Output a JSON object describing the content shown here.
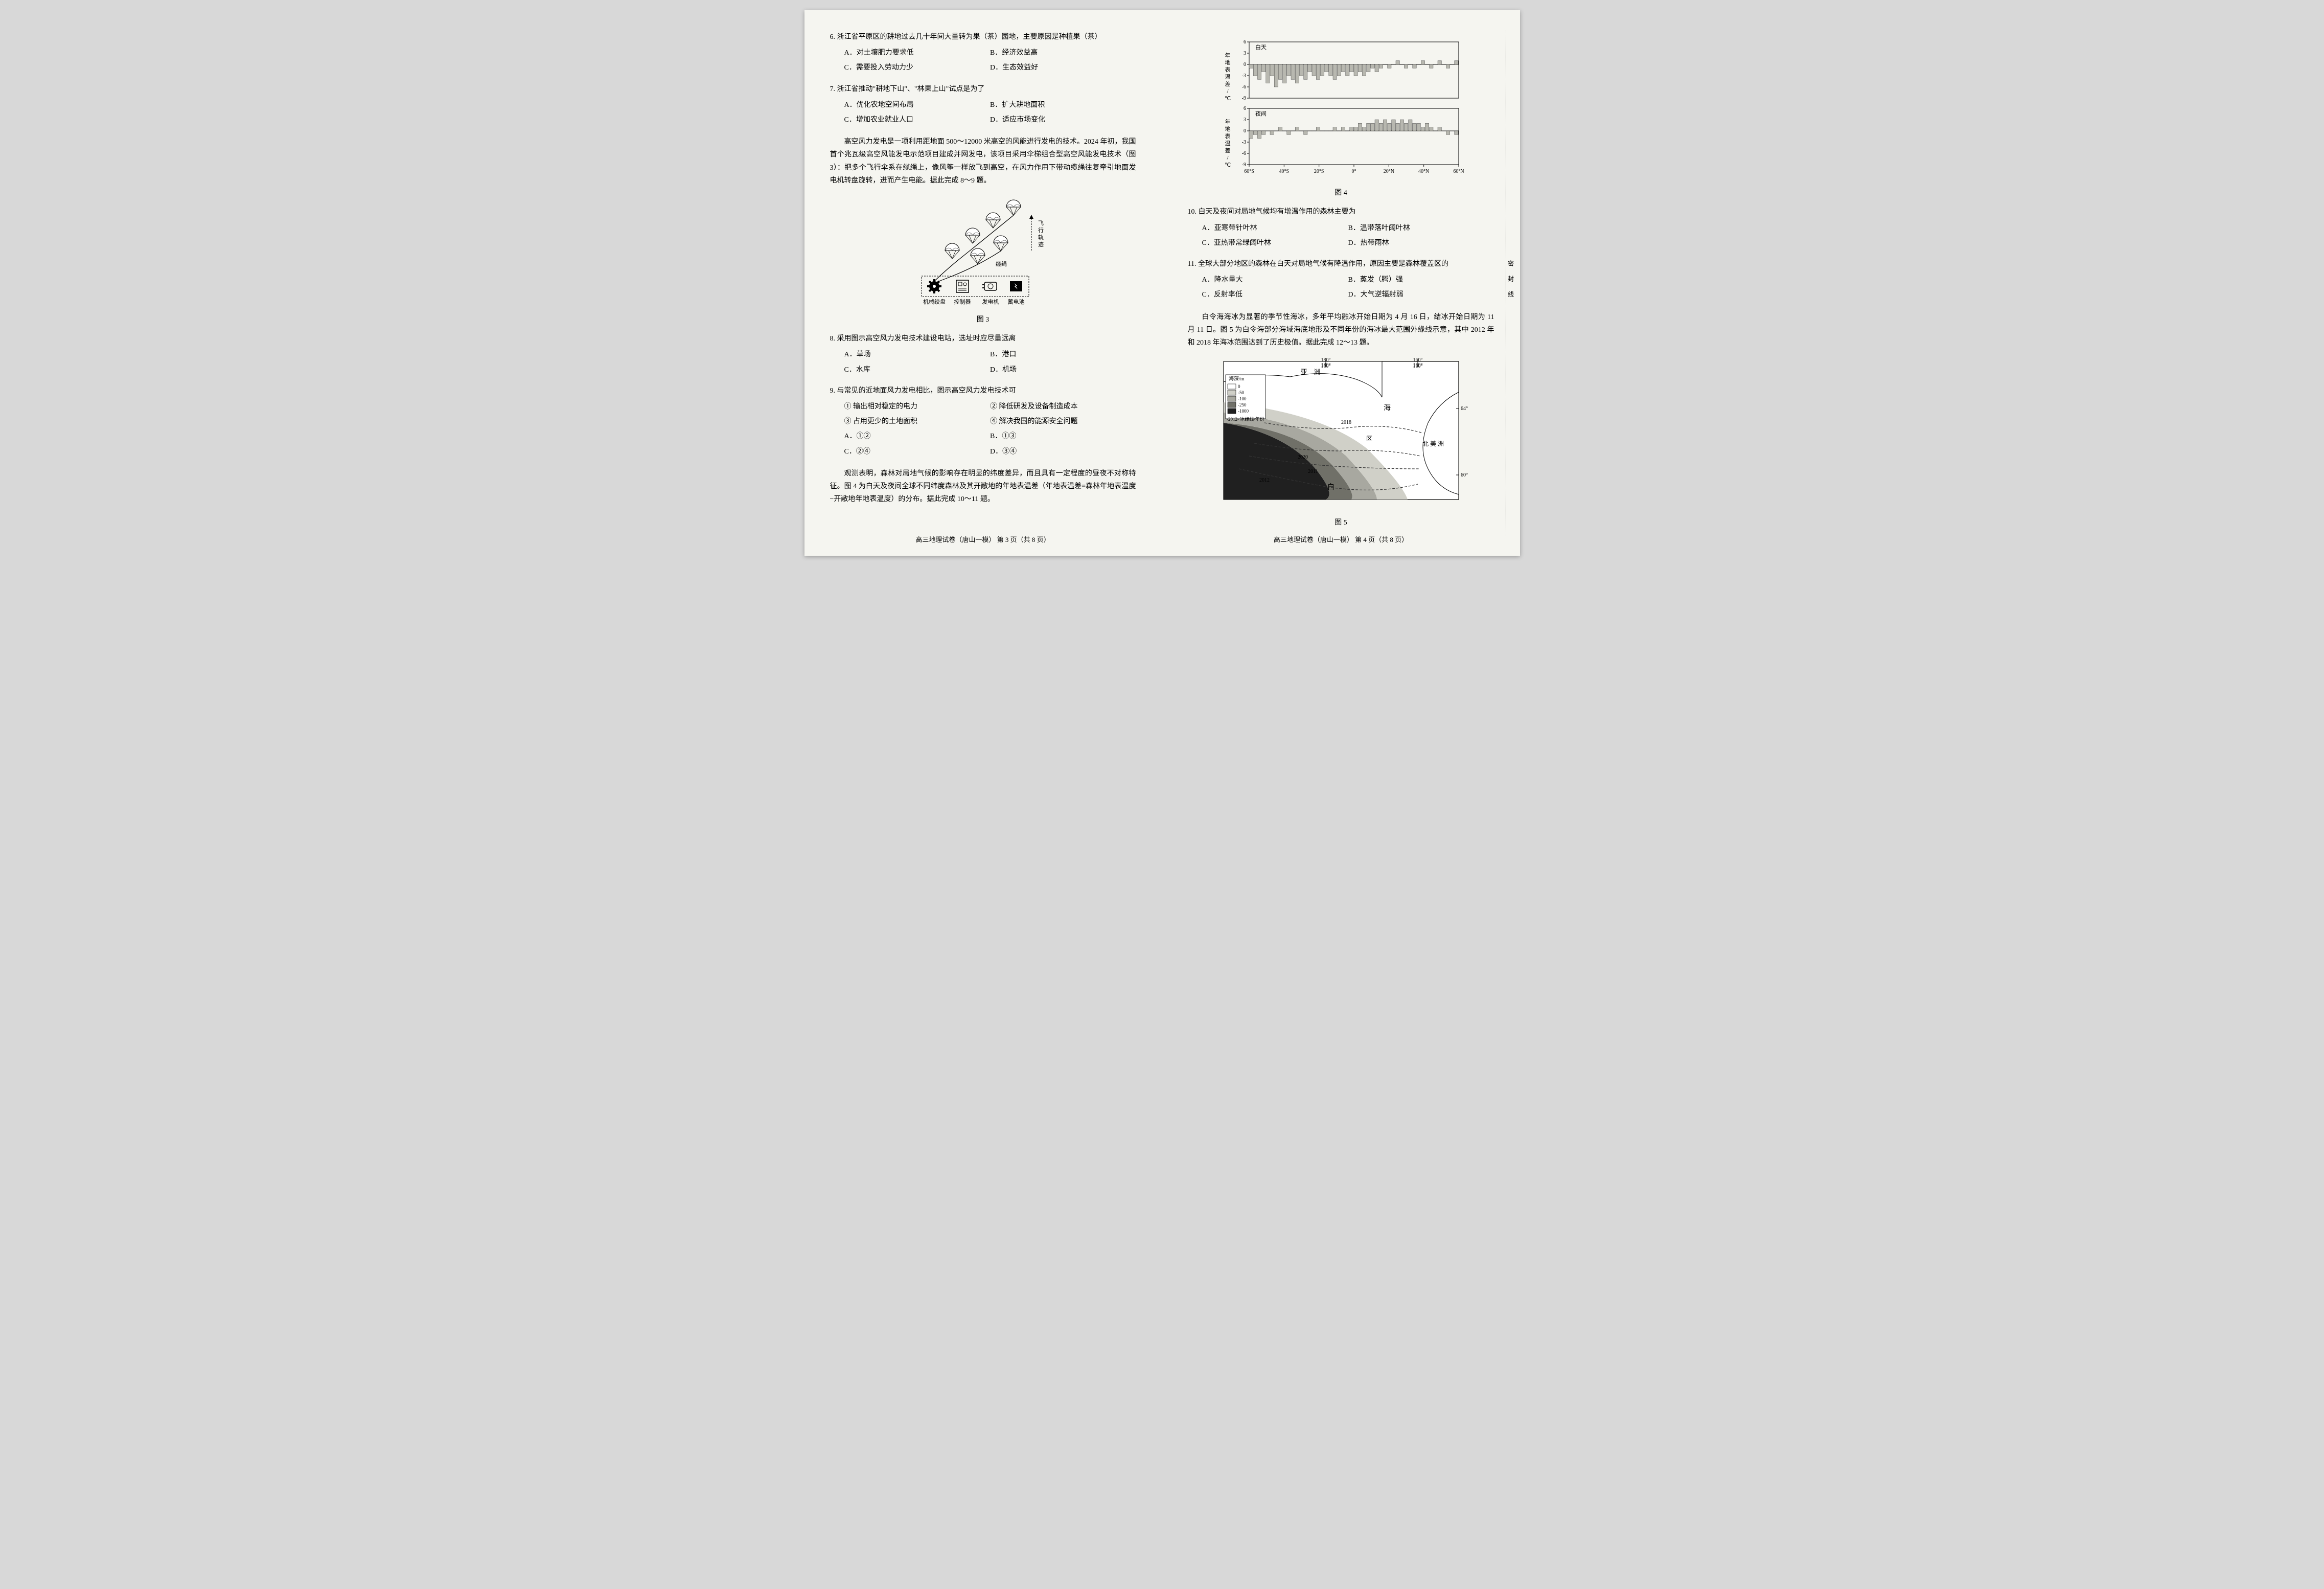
{
  "left": {
    "q6": {
      "stem": "6. 浙江省平原区的耕地过去几十年间大量转为果（茶）园地，主要原因是种植果（茶）",
      "A": "A．对土壤肥力要求低",
      "B": "B．经济效益高",
      "C": "C．需要投入劳动力少",
      "D": "D．生态效益好"
    },
    "q7": {
      "stem": "7. 浙江省推动\"耕地下山\"、\"林果上山\"试点是为了",
      "A": "A．优化农地空间布局",
      "B": "B．扩大耕地面积",
      "C": "C．增加农业就业人口",
      "D": "D．适应市场变化"
    },
    "intro_wind": "高空风力发电是一项利用距地面 500～12000 米高空的风能进行发电的技术。2024 年初，我国首个兆瓦级高空风能发电示范项目建成并网发电，该项目采用伞梯组合型高空风能发电技术（图 3）：把多个飞行伞系在缆绳上，像风筝一样放飞到高空，在风力作用下带动缆绳往复牵引地面发电机转盘旋转，进而产生电能。据此完成 8～9 题。",
    "fig3": {
      "caption": "图 3",
      "labels": {
        "trajectory": "飞行轨迹",
        "cable": "缆绳",
        "winch": "机械绞盘",
        "controller": "控制器",
        "generator": "发电机",
        "battery": "蓄电池"
      },
      "colors": {
        "line": "#000000",
        "fill": "#ffffff"
      }
    },
    "q8": {
      "stem": "8. 采用图示高空风力发电技术建设电站，选址时应尽量远离",
      "A": "A．草场",
      "B": "B．港口",
      "C": "C．水库",
      "D": "D．机场"
    },
    "q9": {
      "stem": "9. 与常见的近地面风力发电相比，图示高空风力发电技术可",
      "s1": "① 输出相对稳定的电力",
      "s2": "② 降低研发及设备制造成本",
      "s3": "③ 占用更少的土地面积",
      "s4": "④ 解决我国的能源安全问题",
      "A": "A．①②",
      "B": "B．①③",
      "C": "C．②④",
      "D": "D．③④"
    },
    "intro_forest": "观测表明，森林对局地气候的影响存在明显的纬度差异，而且具有一定程度的昼夜不对称特征。图 4 为白天及夜间全球不同纬度森林及其开敞地的年地表温差（年地表温差=森林年地表温度−开敞地年地表温度）的分布。据此完成 10～11 题。",
    "footer": "高三地理试卷（唐山一模）  第 3 页（共 8 页）"
  },
  "right": {
    "fig4": {
      "caption": "图 4",
      "day_label": "白天",
      "night_label": "夜间",
      "ylabel": "年地表温差/℃",
      "yticks": [
        -9,
        -6,
        -3,
        0,
        3,
        6
      ],
      "xticks": [
        "60°S",
        "40°S",
        "20°S",
        "0°",
        "20°N",
        "40°N",
        "60°N"
      ],
      "day_values": [
        -1,
        -3,
        -4,
        -2,
        -5,
        -3,
        -6,
        -4,
        -5,
        -3,
        -4,
        -5,
        -3,
        -4,
        -2,
        -3,
        -4,
        -3,
        -2,
        -3,
        -4,
        -3,
        -2,
        -3,
        -2,
        -3,
        -2,
        -3,
        -2,
        -1,
        -2,
        -1,
        0,
        -1,
        0,
        1,
        0,
        -1,
        0,
        -1,
        0,
        1,
        0,
        -1,
        0,
        1,
        0,
        -1,
        0,
        1
      ],
      "night_values": [
        -2,
        -1,
        -2,
        -1,
        0,
        -1,
        0,
        1,
        0,
        -1,
        0,
        1,
        0,
        -1,
        0,
        0,
        1,
        0,
        0,
        0,
        1,
        0,
        1,
        0,
        1,
        1,
        2,
        1,
        2,
        2,
        3,
        2,
        3,
        2,
        3,
        2,
        3,
        2,
        3,
        2,
        2,
        1,
        2,
        1,
        0,
        1,
        0,
        -1,
        0,
        -1
      ],
      "colors": {
        "bar_fill": "#b8b8b0",
        "bar_stroke": "#333333",
        "grid": "#aaaaaa",
        "axis": "#000000",
        "bg": "#f5f5f0"
      },
      "font_size": 10
    },
    "q10": {
      "stem": "10. 白天及夜间对局地气候均有增温作用的森林主要为",
      "A": "A．亚寒带针叶林",
      "B": "B．温带落叶阔叶林",
      "C": "C．亚热带常绿阔叶林",
      "D": "D．热带雨林"
    },
    "q11": {
      "stem": "11. 全球大部分地区的森林在白天对局地气候有降温作用，原因主要是森林覆盖区的",
      "A": "A．降水量大",
      "B": "B．蒸发（腾）强",
      "C": "C．反射率低",
      "D": "D．大气逆辐射弱"
    },
    "intro_ice": "白令海海冰为显著的季节性海冰，多年平均融冰开始日期为 4 月 16 日，结冰开始日期为 11 月 11 日。图 5 为白令海部分海域海底地形及不同年份的海冰最大范围外缘线示意，其中 2012 年和 2018 年海冰范围达到了历史极值。据此完成 12～13 题。",
    "fig5": {
      "caption": "图 5",
      "legend_title": "海深/m",
      "legend_items": [
        {
          "label": "0",
          "color": "#ffffff"
        },
        {
          "label": "-50",
          "color": "#d0d0c8"
        },
        {
          "label": "-100",
          "color": "#a8a8a0"
        },
        {
          "label": "-250",
          "color": "#707068"
        },
        {
          "label": "-1000",
          "color": "#202020"
        }
      ],
      "ice_legend": "-2012- 冰缘线/年份",
      "lon_ticks": [
        "180°",
        "160°"
      ],
      "lat_ticks": [
        "64°",
        "60°"
      ],
      "region_labels": {
        "asia": "亚　洲",
        "sea": "海",
        "bering": "白",
        "strait": "区",
        "na": "北 美 洲"
      },
      "year_labels": [
        "2012",
        "2018",
        "2020",
        "2011"
      ],
      "colors": {
        "coast": "#000000",
        "ice_line": "#333333"
      }
    },
    "footer": "高三地理试卷（唐山一模）  第 4 页（共 8 页）"
  },
  "binding": "密封线"
}
